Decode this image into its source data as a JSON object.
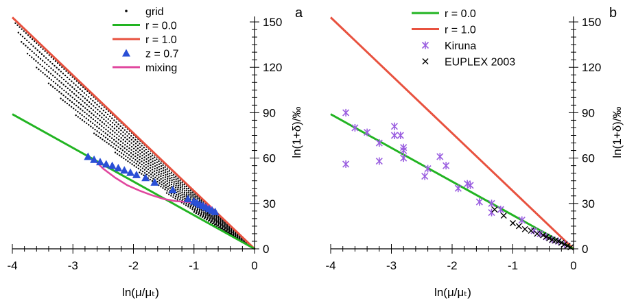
{
  "chart_data": [
    {
      "type": "scatter",
      "panel_label": "a",
      "xlabel": "ln(μ/μₜ)",
      "ylabel": "ln(1+δ)/‰",
      "xlim": [
        -4,
        0
      ],
      "ylim": [
        0,
        150
      ],
      "xticks": [
        "-4",
        "-3",
        "-2",
        "-1",
        "0"
      ],
      "yticks": [
        "0",
        "30",
        "60",
        "90",
        "120",
        "150"
      ],
      "legend_position": "top-right",
      "legend": [
        {
          "name": "grid",
          "marker": "dot",
          "color": "#000000"
        },
        {
          "name": "r = 0.0",
          "marker": "line",
          "color": "#22b422"
        },
        {
          "name": "r = 1.0",
          "marker": "line",
          "color": "#e8523f"
        },
        {
          "name": "z = 0.7",
          "marker": "triangle",
          "color": "#2a4fd6"
        },
        {
          "name": "mixing",
          "marker": "line",
          "color": "#e0479e"
        }
      ],
      "lines": [
        {
          "name": "r = 1.0",
          "color": "#e8523f",
          "x": [
            -4,
            0
          ],
          "y": [
            153,
            0
          ]
        },
        {
          "name": "r = 0.0",
          "color": "#22b422",
          "x": [
            -4,
            0
          ],
          "y": [
            89,
            0
          ]
        }
      ],
      "grid_rays": {
        "x_start": [
          -3.95,
          -3.9,
          -3.85,
          -3.75,
          -3.6,
          -3.4,
          -3.2,
          -2.95,
          -2.65,
          -2.3,
          -1.9,
          -1.45,
          -1.0,
          -0.7
        ],
        "slope_fraction": [
          0.97,
          0.9,
          0.83,
          0.76,
          0.69,
          0.62,
          0.55,
          0.48,
          0.41,
          0.34,
          0.27,
          0.2,
          0.13,
          0.06
        ],
        "x_end": 0
      },
      "z07": {
        "x": [
          -2.75,
          -2.65,
          -2.55,
          -2.45,
          -2.35,
          -2.25,
          -2.15,
          -2.05,
          -1.95,
          -1.8,
          -1.65,
          -1.35,
          -1.1,
          -1.0,
          -0.95,
          -0.9,
          -0.85,
          -0.8,
          -0.75,
          -0.7,
          -0.65
        ],
        "y": [
          61,
          59,
          57.5,
          56,
          55,
          53.5,
          52,
          50.5,
          49,
          47,
          44,
          39,
          33,
          31.5,
          30.5,
          29.5,
          28.5,
          27.5,
          26.5,
          25.5,
          24.5
        ]
      },
      "mixing": {
        "x": [
          -2.65,
          -2.5,
          -2.3,
          -2.1,
          -1.9,
          -1.7,
          -1.5,
          -1.3,
          -1.1,
          -0.95,
          -0.8,
          -0.7
        ],
        "y": [
          59,
          53,
          47,
          42,
          38.5,
          35.5,
          33,
          31.5,
          31,
          30.5,
          29,
          27
        ]
      }
    },
    {
      "type": "scatter",
      "panel_label": "b",
      "xlabel": "ln(μ/μₜ)",
      "ylabel": "ln(1+δ)/‰",
      "xlim": [
        -4,
        0
      ],
      "ylim": [
        0,
        150
      ],
      "xticks": [
        "-4",
        "-3",
        "-2",
        "-1",
        "0"
      ],
      "yticks": [
        "0",
        "30",
        "60",
        "90",
        "120",
        "150"
      ],
      "legend_position": "top-center",
      "legend": [
        {
          "name": "r = 0.0",
          "marker": "line",
          "color": "#22b422"
        },
        {
          "name": "r = 1.0",
          "marker": "line",
          "color": "#e8523f"
        },
        {
          "name": "Kiruna",
          "marker": "asterisk",
          "color": "#9a5ee0"
        },
        {
          "name": "EUPLEX 2003",
          "marker": "x",
          "color": "#000000"
        }
      ],
      "lines": [
        {
          "name": "r = 1.0",
          "color": "#e8523f",
          "x": [
            -4,
            0
          ],
          "y": [
            153,
            0
          ]
        },
        {
          "name": "r = 0.0",
          "color": "#22b422",
          "x": [
            -4,
            0
          ],
          "y": [
            89,
            0
          ]
        }
      ],
      "kiruna": {
        "x": [
          -3.75,
          -3.75,
          -3.6,
          -3.4,
          -3.2,
          -3.2,
          -2.95,
          -2.95,
          -2.85,
          -2.8,
          -2.8,
          -2.8,
          -2.45,
          -2.4,
          -2.2,
          -2.1,
          -1.9,
          -1.75,
          -1.7,
          -1.55,
          -1.35,
          -1.35,
          -1.2,
          -0.85,
          -0.65,
          -0.55,
          -0.45,
          -0.35,
          -0.25,
          -0.15
        ],
        "y": [
          90,
          56,
          80,
          77,
          70,
          58,
          81,
          75,
          75,
          67,
          65,
          60,
          48,
          53,
          61,
          55,
          40,
          43,
          42,
          31,
          30,
          24,
          26,
          19,
          12,
          10,
          8,
          6,
          5,
          3
        ]
      },
      "euplex": {
        "x": [
          -1.3,
          -1.15,
          -1.0,
          -0.9,
          -0.8,
          -0.7,
          -0.6,
          -0.5,
          -0.45,
          -0.4,
          -0.35,
          -0.3,
          -0.25,
          -0.2,
          -0.15,
          -0.1,
          -0.05
        ],
        "y": [
          26,
          22,
          17,
          15,
          13,
          12,
          10,
          9,
          8,
          7,
          6,
          5.5,
          5,
          4,
          3,
          2,
          1
        ]
      }
    }
  ]
}
